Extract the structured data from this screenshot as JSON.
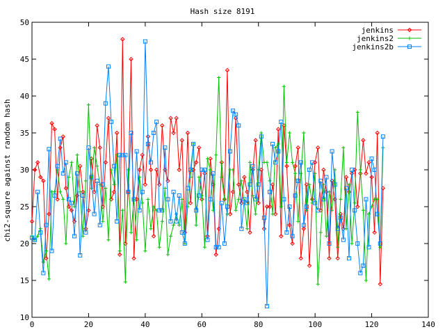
{
  "chart_data": {
    "type": "line",
    "title": "Hash size 8191",
    "xlabel": "",
    "ylabel": "chi2-square against random hash",
    "xlim": [
      0,
      140
    ],
    "ylim": [
      10,
      50
    ],
    "xticks": [
      0,
      20,
      40,
      60,
      80,
      100,
      120,
      140
    ],
    "yticks": [
      10,
      15,
      20,
      25,
      30,
      35,
      40,
      45,
      50
    ],
    "grid": false,
    "legend_position": "top-right",
    "series": [
      {
        "name": "jenkins",
        "color": "#ff0000",
        "marker": "diamond",
        "x": [
          0,
          1,
          2,
          3,
          4,
          5,
          6,
          7,
          8,
          9,
          10,
          11,
          12,
          13,
          14,
          15,
          16,
          17,
          18,
          19,
          20,
          21,
          22,
          23,
          24,
          25,
          26,
          27,
          28,
          29,
          30,
          31,
          32,
          33,
          34,
          35,
          36,
          37,
          38,
          39,
          40,
          41,
          42,
          43,
          44,
          45,
          46,
          47,
          48,
          49,
          50,
          51,
          52,
          53,
          54,
          55,
          56,
          57,
          58,
          59,
          60,
          61,
          62,
          63,
          64,
          65,
          66,
          67,
          68,
          69,
          70,
          71,
          72,
          73,
          74,
          75,
          76,
          77,
          78,
          79,
          80,
          81,
          82,
          83,
          84,
          85,
          86,
          87,
          88,
          89,
          90,
          91,
          92,
          93,
          94,
          95,
          96,
          97,
          98,
          99,
          100,
          101,
          102,
          103,
          104,
          105,
          106,
          107,
          108,
          109,
          110,
          111,
          112,
          113,
          114,
          115,
          116,
          117,
          118,
          119,
          120,
          121,
          122,
          123,
          124
        ],
        "y": [
          23.0,
          30.0,
          31.0,
          29.0,
          28.5,
          18.0,
          24.0,
          36.3,
          35.5,
          26.0,
          33.0,
          34.5,
          27.5,
          25.0,
          24.5,
          23.0,
          26.5,
          30.5,
          27.0,
          22.0,
          24.5,
          31.5,
          27.0,
          36.0,
          33.0,
          25.0,
          31.0,
          37.0,
          26.0,
          27.0,
          35.0,
          18.5,
          47.7,
          20.0,
          27.0,
          45.0,
          18.0,
          26.0,
          30.0,
          32.0,
          28.0,
          34.5,
          30.0,
          21.0,
          30.0,
          28.0,
          36.0,
          30.0,
          28.5,
          37.0,
          35.0,
          37.0,
          30.0,
          34.0,
          21.5,
          35.0,
          25.5,
          30.0,
          31.0,
          33.0,
          26.0,
          29.5,
          21.0,
          31.5,
          28.0,
          18.5,
          22.0,
          31.0,
          26.0,
          43.5,
          24.0,
          27.0,
          37.0,
          28.0,
          25.5,
          29.0,
          27.0,
          21.5,
          30.0,
          34.0,
          25.5,
          30.0,
          22.0,
          25.0,
          25.0,
          28.0,
          24.0,
          35.5,
          21.0,
          36.0,
          30.5,
          22.5,
          20.0,
          30.5,
          33.0,
          18.0,
          22.0,
          28.0,
          17.0,
          26.0,
          31.0,
          33.0,
          24.5,
          30.0,
          27.0,
          18.0,
          28.5,
          26.0,
          18.0,
          24.0,
          22.0,
          29.0,
          27.0,
          29.5,
          30.0,
          25.0,
          29.5,
          34.0,
          29.5,
          31.0,
          29.0,
          21.5,
          35.0,
          14.5,
          27.5
        ]
      },
      {
        "name": "jenkins2",
        "color": "#00c000",
        "marker": "plus",
        "x": [
          0,
          1,
          2,
          3,
          4,
          5,
          6,
          7,
          8,
          9,
          10,
          11,
          12,
          13,
          14,
          15,
          16,
          17,
          18,
          19,
          20,
          21,
          22,
          23,
          24,
          25,
          26,
          27,
          28,
          29,
          30,
          31,
          32,
          33,
          34,
          35,
          36,
          37,
          38,
          39,
          40,
          41,
          42,
          43,
          44,
          45,
          46,
          47,
          48,
          49,
          50,
          51,
          52,
          53,
          54,
          55,
          56,
          57,
          58,
          59,
          60,
          61,
          62,
          63,
          64,
          65,
          66,
          67,
          68,
          69,
          70,
          71,
          72,
          73,
          74,
          75,
          76,
          77,
          78,
          79,
          80,
          81,
          82,
          83,
          84,
          85,
          86,
          87,
          88,
          89,
          90,
          91,
          92,
          93,
          94,
          95,
          96,
          97,
          98,
          99,
          100,
          101,
          102,
          103,
          104,
          105,
          106,
          107,
          108,
          109,
          110,
          111,
          112,
          113,
          114,
          115,
          116,
          117,
          118,
          119,
          120,
          121,
          122,
          123,
          124
        ],
        "y": [
          21.0,
          20.5,
          21.0,
          22.0,
          17.5,
          19.0,
          15.2,
          27.0,
          27.0,
          30.0,
          27.0,
          26.0,
          20.0,
          29.0,
          31.0,
          25.0,
          32.0,
          27.0,
          21.0,
          28.5,
          38.8,
          27.5,
          33.0,
          30.5,
          28.0,
          23.0,
          27.5,
          20.5,
          30.0,
          28.0,
          32.0,
          19.0,
          24.5,
          14.8,
          30.0,
          21.5,
          26.0,
          20.5,
          29.0,
          25.5,
          19.0,
          26.0,
          22.0,
          25.0,
          24.5,
          19.5,
          23.0,
          27.5,
          18.5,
          21.0,
          22.5,
          24.0,
          22.5,
          26.0,
          20.0,
          25.0,
          29.0,
          33.5,
          22.5,
          29.0,
          26.5,
          19.5,
          31.5,
          30.0,
          24.5,
          32.0,
          42.5,
          29.0,
          26.0,
          24.0,
          30.0,
          30.0,
          24.5,
          26.0,
          28.5,
          25.5,
          22.0,
          31.0,
          26.5,
          24.0,
          30.0,
          35.0,
          31.0,
          31.0,
          28.5,
          24.0,
          33.0,
          33.5,
          25.0,
          41.3,
          31.0,
          35.0,
          31.0,
          29.5,
          23.0,
          29.5,
          35.0,
          24.5,
          28.0,
          25.5,
          29.5,
          14.5,
          21.5,
          28.0,
          21.0,
          27.0,
          24.5,
          30.0,
          19.5,
          26.0,
          33.0,
          22.0,
          28.0,
          20.0,
          25.5,
          37.8,
          30.0,
          24.5,
          15.0,
          24.0,
          25.0,
          26.0,
          26.0,
          19.5,
          33.0
        ]
      },
      {
        "name": "jenkins2b",
        "color": "#0080ff",
        "marker": "square",
        "x": [
          0,
          1,
          2,
          3,
          4,
          5,
          6,
          7,
          8,
          9,
          10,
          11,
          12,
          13,
          14,
          15,
          16,
          17,
          18,
          19,
          20,
          21,
          22,
          23,
          24,
          25,
          26,
          27,
          28,
          29,
          30,
          31,
          32,
          33,
          34,
          35,
          36,
          37,
          38,
          39,
          40,
          41,
          42,
          43,
          44,
          45,
          46,
          47,
          48,
          49,
          50,
          51,
          52,
          53,
          54,
          55,
          56,
          57,
          58,
          59,
          60,
          61,
          62,
          63,
          64,
          65,
          66,
          67,
          68,
          69,
          70,
          71,
          72,
          73,
          74,
          75,
          76,
          77,
          78,
          79,
          80,
          81,
          82,
          83,
          84,
          85,
          86,
          87,
          88,
          89,
          90,
          91,
          92,
          93,
          94,
          95,
          96,
          97,
          98,
          99,
          100,
          101,
          102,
          103,
          104,
          105,
          106,
          107,
          108,
          109,
          110,
          111,
          112,
          113,
          114,
          115,
          116,
          117,
          118,
          119,
          120,
          121,
          122,
          123,
          124
        ],
        "y": [
          20.8,
          20.5,
          27.0,
          21.5,
          16.0,
          22.5,
          32.8,
          19.0,
          26.5,
          30.5,
          34.2,
          29.5,
          31.0,
          26.0,
          25.5,
          21.0,
          29.5,
          18.4,
          26.5,
          21.5,
          33.0,
          29.0,
          24.0,
          28.5,
          22.5,
          28.0,
          39.0,
          44.0,
          36.5,
          30.5,
          23.0,
          32.0,
          32.0,
          32.0,
          27.0,
          35.0,
          26.0,
          32.5,
          24.5,
          27.0,
          47.4,
          33.5,
          31.0,
          35.0,
          36.5,
          24.5,
          24.5,
          33.0,
          26.0,
          23.0,
          27.0,
          23.0,
          26.5,
          21.5,
          20.0,
          27.5,
          30.0,
          33.5,
          24.5,
          26.5,
          30.0,
          30.0,
          20.5,
          26.0,
          29.5,
          19.5,
          19.5,
          25.5,
          20.0,
          25.0,
          32.5,
          38.0,
          37.5,
          36.0,
          22.0,
          26.0,
          25.5,
          28.0,
          30.5,
          26.0,
          28.0,
          34.5,
          23.5,
          11.5,
          27.0,
          33.5,
          31.0,
          32.5,
          36.5,
          26.0,
          21.5,
          25.0,
          21.0,
          26.5,
          28.5,
          31.0,
          22.5,
          25.0,
          30.0,
          31.0,
          25.5,
          24.5,
          28.5,
          26.0,
          29.0,
          20.0,
          32.5,
          28.0,
          22.0,
          23.5,
          20.5,
          27.5,
          18.0,
          30.0,
          24.5,
          20.0,
          16.0,
          17.0,
          26.0,
          19.5,
          31.5,
          30.0,
          24.0,
          20.0,
          34.5
        ]
      }
    ]
  }
}
